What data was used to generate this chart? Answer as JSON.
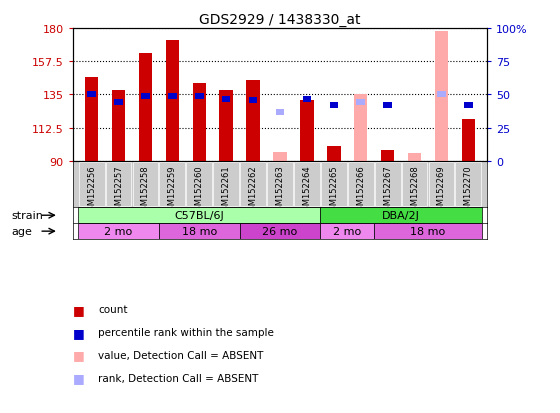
{
  "title": "GDS2929 / 1438330_at",
  "samples": [
    "GSM152256",
    "GSM152257",
    "GSM152258",
    "GSM152259",
    "GSM152260",
    "GSM152261",
    "GSM152262",
    "GSM152263",
    "GSM152264",
    "GSM152265",
    "GSM152266",
    "GSM152267",
    "GSM152268",
    "GSM152269",
    "GSM152270"
  ],
  "ylim": [
    90,
    180
  ],
  "yticks": [
    90,
    112.5,
    135,
    157.5,
    180
  ],
  "ytick_labels": [
    "90",
    "112.5",
    "135",
    "157.5",
    "180"
  ],
  "y2lim": [
    0,
    100
  ],
  "y2ticks": [
    0,
    25,
    50,
    75,
    100
  ],
  "y2tick_labels": [
    "0",
    "25",
    "50",
    "75",
    "100%"
  ],
  "bar_bottom": 90,
  "count_values": [
    147,
    138,
    163,
    172,
    143,
    138,
    145,
    null,
    131,
    100,
    null,
    97,
    null,
    null,
    118
  ],
  "count_absent_values": [
    null,
    null,
    null,
    null,
    null,
    null,
    null,
    96,
    null,
    null,
    135,
    null,
    95,
    178,
    null
  ],
  "rank_values": [
    135,
    130,
    134,
    134,
    134,
    132,
    131,
    null,
    132,
    128,
    null,
    128,
    null,
    135,
    128
  ],
  "rank_absent_values": [
    null,
    null,
    null,
    null,
    null,
    null,
    null,
    123,
    null,
    null,
    130,
    null,
    null,
    135,
    null
  ],
  "bar_color": "#cc0000",
  "absent_bar_color": "#ffaaaa",
  "rank_color": "#0000cc",
  "rank_absent_color": "#aaaaff",
  "strain_groups": [
    {
      "label": "C57BL/6J",
      "start": 0,
      "end": 9,
      "color": "#aaffaa"
    },
    {
      "label": "DBA/2J",
      "start": 9,
      "end": 15,
      "color": "#44dd44"
    }
  ],
  "age_groups": [
    {
      "label": "2 mo",
      "start": 0,
      "end": 3,
      "color": "#ee88ee"
    },
    {
      "label": "18 mo",
      "start": 3,
      "end": 6,
      "color": "#dd66dd"
    },
    {
      "label": "26 mo",
      "start": 6,
      "end": 9,
      "color": "#cc44cc"
    },
    {
      "label": "2 mo",
      "start": 9,
      "end": 11,
      "color": "#ee88ee"
    },
    {
      "label": "18 mo",
      "start": 11,
      "end": 15,
      "color": "#dd66dd"
    }
  ],
  "bg_color": "#ffffff",
  "tick_label_color_left": "#cc0000",
  "tick_label_color_right": "#0000cc"
}
